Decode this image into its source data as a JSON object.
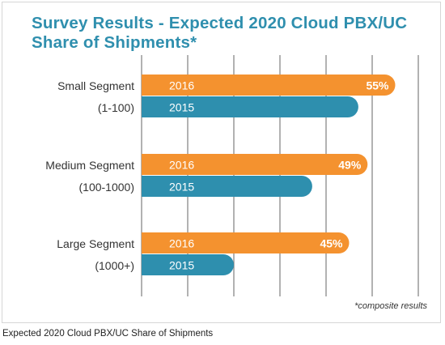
{
  "chart_data": {
    "type": "bar",
    "orientation": "horizontal",
    "title": "Survey Results - Expected 2020 Cloud PBX/UC Share of Shipments*",
    "categories": [
      {
        "line1": "Small Segment",
        "line2": "(1-100)"
      },
      {
        "line1": "Medium Segment",
        "line2": "(100-1000)"
      },
      {
        "line1": "Large Segment",
        "line2": "(1000+)"
      }
    ],
    "series": [
      {
        "name": "2016",
        "color": "#f4922f",
        "values": [
          55,
          49,
          45
        ],
        "data_labels": [
          "55%",
          "49%",
          "45%"
        ]
      },
      {
        "name": "2015",
        "color": "#2e8fae",
        "values": [
          47,
          37,
          20
        ],
        "data_labels": []
      }
    ],
    "xlim": [
      0,
      60
    ],
    "grid": true,
    "legend": "none"
  },
  "footnote": "*composite results",
  "caption": "Expected 2020 Cloud PBX/UC Share of Shipments"
}
